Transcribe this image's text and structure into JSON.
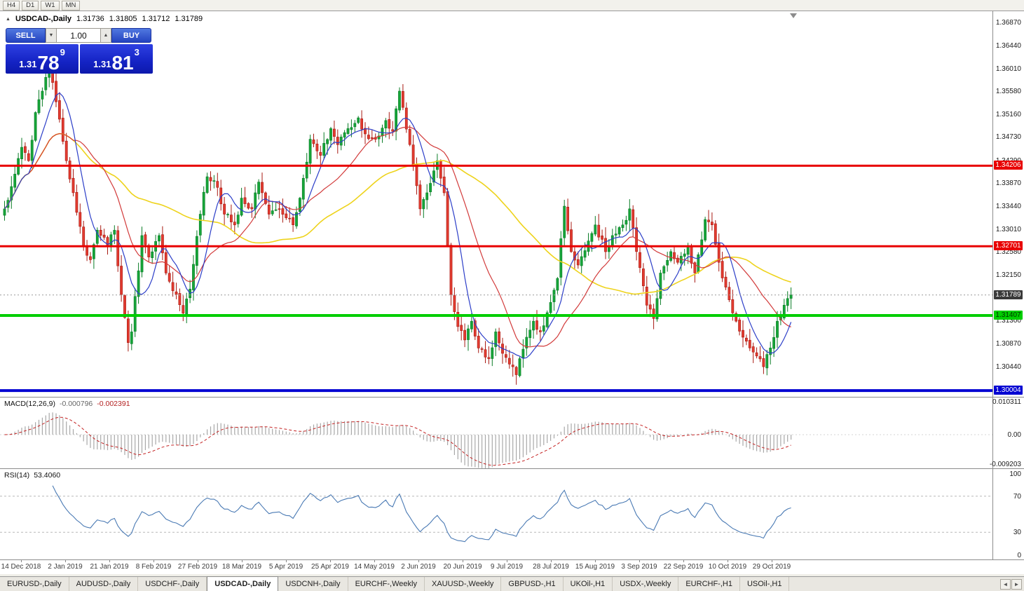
{
  "window": {
    "timeframes": [
      "H4",
      "D1",
      "W1",
      "MN"
    ]
  },
  "icons": {
    "collapse": "▲",
    "spin_up": "▲",
    "spin_down": "▼",
    "tab_scroll_left": "◄",
    "tab_scroll_right": "►"
  },
  "chart_header": {
    "symbol": "USDCAD-,Daily",
    "open": "1.31736",
    "high": "1.31805",
    "low": "1.31712",
    "close": "1.31789"
  },
  "trade_panel": {
    "sell_label": "SELL",
    "buy_label": "BUY",
    "volume": "1.00",
    "sell_price": {
      "small": "1.31",
      "big": "78",
      "sup": "9"
    },
    "buy_price": {
      "small": "1.31",
      "big": "81",
      "sup": "3"
    }
  },
  "price_axis": {
    "badges": [
      {
        "text": "1.34206",
        "bg": "#e80000",
        "fg": "#ffffff",
        "price": 1.34206
      },
      {
        "text": "1.32701",
        "bg": "#e80000",
        "fg": "#ffffff",
        "price": 1.32701
      },
      {
        "text": "1.31789",
        "bg": "#3a3a3a",
        "fg": "#ffffff",
        "price": 1.31789
      },
      {
        "text": "1.31407",
        "bg": "#00ce00",
        "fg": "#003300",
        "price": 1.31407
      },
      {
        "text": "1.30004",
        "bg": "#0000d2",
        "fg": "#ffffff",
        "price": 1.30004
      }
    ]
  },
  "chart_data": {
    "type": "candlestick",
    "symbol": "USDCAD",
    "timeframe": "Daily",
    "title": "USDCAD-,Daily",
    "ohlc_current": {
      "open": 1.31736,
      "high": 1.31805,
      "low": 1.31712,
      "close": 1.31789
    },
    "y_range": [
      1.29887,
      1.37093
    ],
    "y_ticks": [
      "1.36870",
      "1.36440",
      "1.36010",
      "1.35580",
      "1.35160",
      "1.34730",
      "1.34290",
      "1.33870",
      "1.33440",
      "1.33010",
      "1.32580",
      "1.32150",
      "1.31730",
      "1.31300",
      "1.30870",
      "1.30440"
    ],
    "x_labels": [
      "14 Dec 2018",
      "2 Jan 2019",
      "21 Jan 2019",
      "8 Feb 2019",
      "27 Feb 2019",
      "18 Mar 2019",
      "5 Apr 2019",
      "25 Apr 2019",
      "14 May 2019",
      "2 Jun 2019",
      "20 Jun 2019",
      "9 Jul 2019",
      "28 Jul 2019",
      "15 Aug 2019",
      "3 Sep 2019",
      "22 Sep 2019",
      "10 Oct 2019",
      "29 Oct 2019"
    ],
    "num_candles": 230,
    "close_anchors": [
      [
        0,
        1.334
      ],
      [
        3,
        1.3405
      ],
      [
        5,
        1.3455
      ],
      [
        7,
        1.343
      ],
      [
        9,
        1.352
      ],
      [
        11,
        1.356
      ],
      [
        13,
        1.362
      ],
      [
        15,
        1.354
      ],
      [
        18,
        1.343
      ],
      [
        20,
        1.337
      ],
      [
        23,
        1.327
      ],
      [
        25,
        1.3245
      ],
      [
        27,
        1.33
      ],
      [
        30,
        1.327
      ],
      [
        32,
        1.33
      ],
      [
        34,
        1.318
      ],
      [
        36,
        1.309
      ],
      [
        37,
        1.311
      ],
      [
        40,
        1.329
      ],
      [
        42,
        1.325
      ],
      [
        45,
        1.329
      ],
      [
        47,
        1.322
      ],
      [
        50,
        1.318
      ],
      [
        52,
        1.3145
      ],
      [
        54,
        1.319
      ],
      [
        57,
        1.333
      ],
      [
        59,
        1.34
      ],
      [
        62,
        1.338
      ],
      [
        64,
        1.333
      ],
      [
        67,
        1.331
      ],
      [
        69,
        1.336
      ],
      [
        72,
        1.334
      ],
      [
        74,
        1.339
      ],
      [
        77,
        1.333
      ],
      [
        80,
        1.334
      ],
      [
        84,
        1.331
      ],
      [
        86,
        1.336
      ],
      [
        89,
        1.347
      ],
      [
        92,
        1.344
      ],
      [
        95,
        1.349
      ],
      [
        97,
        1.346
      ],
      [
        100,
        1.349
      ],
      [
        103,
        1.351
      ],
      [
        105,
        1.348
      ],
      [
        108,
        1.347
      ],
      [
        111,
        1.3505
      ],
      [
        113,
        1.3485
      ],
      [
        115,
        1.356
      ],
      [
        118,
        1.346
      ],
      [
        121,
        1.334
      ],
      [
        123,
        1.337
      ],
      [
        126,
        1.343
      ],
      [
        128,
        1.337
      ],
      [
        130,
        1.318
      ],
      [
        132,
        1.312
      ],
      [
        134,
        1.3095
      ],
      [
        136,
        1.313
      ],
      [
        138,
        1.308
      ],
      [
        141,
        1.306
      ],
      [
        143,
        1.311
      ],
      [
        145,
        1.307
      ],
      [
        147,
        1.305
      ],
      [
        149,
        1.303
      ],
      [
        150,
        1.306
      ],
      [
        152,
        1.31
      ],
      [
        154,
        1.313
      ],
      [
        156,
        1.311
      ],
      [
        159,
        1.3165
      ],
      [
        161,
        1.321
      ],
      [
        163,
        1.3345
      ],
      [
        165,
        1.326
      ],
      [
        167,
        1.3235
      ],
      [
        170,
        1.328
      ],
      [
        172,
        1.331
      ],
      [
        175,
        1.326
      ],
      [
        177,
        1.329
      ],
      [
        180,
        1.331
      ],
      [
        182,
        1.334
      ],
      [
        185,
        1.323
      ],
      [
        187,
        1.316
      ],
      [
        189,
        1.3135
      ],
      [
        191,
        1.322
      ],
      [
        194,
        1.326
      ],
      [
        196,
        1.324
      ],
      [
        199,
        1.327
      ],
      [
        201,
        1.322
      ],
      [
        204,
        1.332
      ],
      [
        206,
        1.331
      ],
      [
        208,
        1.324
      ],
      [
        211,
        1.317
      ],
      [
        213,
        1.313
      ],
      [
        215,
        1.31
      ],
      [
        217,
        1.308
      ],
      [
        219,
        1.3065
      ],
      [
        221,
        1.3045
      ],
      [
        223,
        1.308
      ],
      [
        225,
        1.313
      ],
      [
        227,
        1.316
      ],
      [
        229,
        1.31789
      ]
    ],
    "levels": [
      {
        "price": 1.34206,
        "color": "#e80000",
        "width": 3,
        "style": "solid"
      },
      {
        "price": 1.32701,
        "color": "#e80000",
        "width": 3,
        "style": "solid"
      },
      {
        "price": 1.31407,
        "color": "#00ce00",
        "width": 4,
        "style": "solid"
      },
      {
        "price": 1.30004,
        "color": "#0000d2",
        "width": 4,
        "style": "solid"
      },
      {
        "price": 1.31789,
        "color": "#9a9a9a",
        "width": 1,
        "style": "dashed"
      }
    ],
    "moving_averages": [
      {
        "period": 55,
        "color": "#eed31c",
        "width": 1.6
      },
      {
        "period": 21,
        "color": "#d23a3a",
        "width": 1.2
      },
      {
        "period": 8,
        "color": "#2c3ec8",
        "width": 1.2
      }
    ],
    "candle_colors": {
      "up_fill": "#16a539",
      "up_stroke": "#0b7d27",
      "down_fill": "#e23b30",
      "down_stroke": "#a81a12"
    },
    "indicators": {
      "macd": {
        "name": "MACD(12,26,9)",
        "value_main": "-0.000796",
        "value_signal": "-0.002391",
        "params": [
          12,
          26,
          9
        ],
        "range": [
          -0.0095,
          0.0105
        ],
        "axis_labels": [
          {
            "text": "0.010311",
            "value": 0.010311
          },
          {
            "text": "0.00",
            "value": 0
          },
          {
            "text": "-0.009203",
            "value": -0.009203
          }
        ],
        "histogram_color": "#a8a8a8",
        "signal_color": "#c42222"
      },
      "rsi": {
        "name": "RSI(14)",
        "value": "53.4060",
        "period": 14,
        "range": [
          0,
          100
        ],
        "levels": [
          70,
          30
        ],
        "axis_labels": [
          {
            "text": "100",
            "value": 100
          },
          {
            "text": "70",
            "value": 70
          },
          {
            "text": "30",
            "value": 30
          },
          {
            "text": "0",
            "value": 0
          }
        ],
        "line_color": "#4a7ab4"
      }
    }
  },
  "tabs": {
    "items": [
      {
        "label": "EURUSD-,Daily",
        "active": false
      },
      {
        "label": "AUDUSD-,Daily",
        "active": false
      },
      {
        "label": "USDCHF-,Daily",
        "active": false
      },
      {
        "label": "USDCAD-,Daily",
        "active": true
      },
      {
        "label": "USDCNH-,Daily",
        "active": false
      },
      {
        "label": "EURCHF-,Weekly",
        "active": false
      },
      {
        "label": "XAUUSD-,Weekly",
        "active": false
      },
      {
        "label": "GBPUSD-,H1",
        "active": false
      },
      {
        "label": "UKOil-,H1",
        "active": false
      },
      {
        "label": "USDX-,Weekly",
        "active": false
      },
      {
        "label": "EURCHF-,H1",
        "active": false
      },
      {
        "label": "USOil-,H1",
        "active": false
      }
    ]
  }
}
